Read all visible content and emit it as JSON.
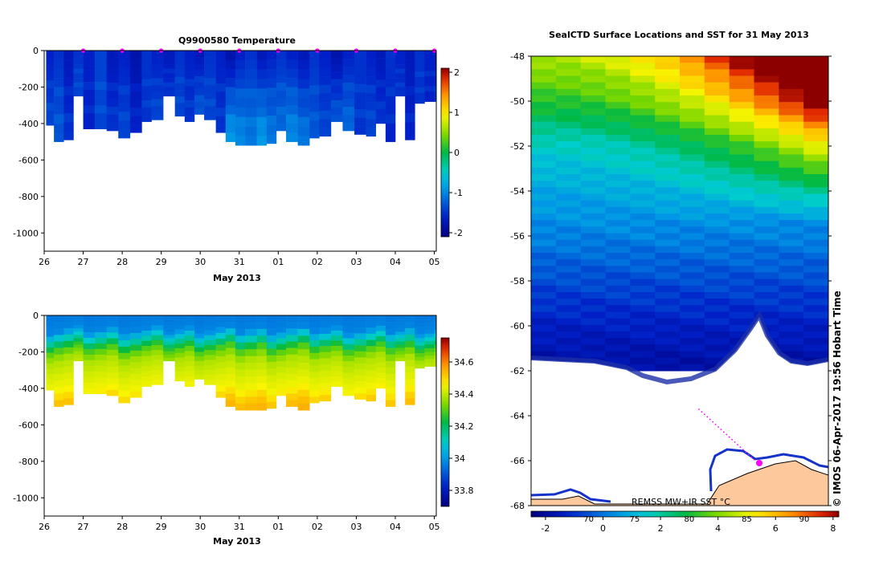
{
  "chart_data": [
    {
      "id": "temperature-section",
      "type": "heatmap",
      "title": "Q9900580  Temperature",
      "xlabel": "May 2013",
      "ylabel": "",
      "x_ticks": [
        "26",
        "27",
        "28",
        "29",
        "30",
        "31",
        "01",
        "02",
        "03",
        "04",
        "05"
      ],
      "x_range_days": [
        26.0,
        36.05
      ],
      "y_ticks": [
        0,
        -200,
        -400,
        -600,
        -800,
        -1000
      ],
      "ylim": [
        -1100,
        0
      ],
      "profile_markers_days": [
        27.0,
        28.0,
        29.0,
        30.0,
        31.0,
        32.0,
        33.0,
        34.0,
        35.0,
        36.0
      ],
      "colorbar": {
        "ticks": [
          2,
          1,
          0,
          -1,
          -2
        ],
        "range": [
          -2.1,
          2.1
        ]
      },
      "profiles": {
        "time_days": [
          26.05,
          26.25,
          26.5,
          26.75,
          27.0,
          27.3,
          27.6,
          27.9,
          28.2,
          28.5,
          28.75,
          29.05,
          29.35,
          29.6,
          29.85,
          30.1,
          30.4,
          30.65,
          30.9,
          31.15,
          31.45,
          31.7,
          31.95,
          32.2,
          32.5,
          32.8,
          33.05,
          33.35,
          33.65,
          33.95,
          34.25,
          34.5,
          34.75,
          35.0,
          35.25,
          35.5,
          35.75,
          36.0
        ],
        "max_depth_m": [
          410,
          500,
          490,
          250,
          430,
          430,
          440,
          480,
          450,
          390,
          380,
          250,
          360,
          390,
          350,
          380,
          450,
          500,
          520,
          520,
          520,
          510,
          440,
          500,
          520,
          480,
          470,
          390,
          440,
          460,
          470,
          400,
          500,
          250,
          490,
          290,
          280,
          280
        ]
      },
      "values_surface_c": [
        -1.6,
        -1.5,
        -1.7,
        -1.5,
        -1.6,
        -1.4,
        -1.7,
        -1.6,
        -1.8,
        -1.5,
        -1.6,
        -1.7,
        -1.5,
        -1.6,
        -1.7,
        -1.5,
        -1.6,
        -1.8,
        -1.6,
        -1.5,
        -1.7,
        -1.6,
        -1.5,
        -1.6,
        -1.7,
        -1.5,
        -1.6,
        -1.8,
        -1.6,
        -1.5,
        -1.6,
        -1.7,
        -1.5,
        -1.6,
        -1.7,
        -1.5,
        -1.6,
        -1.7
      ],
      "values_deep_c": [
        -1.4,
        -1.3,
        -1.5,
        -1.4,
        -1.6,
        -1.4,
        -1.5,
        -1.4,
        -1.6,
        -1.5,
        -1.4,
        -1.5,
        -1.4,
        -1.5,
        -1.3,
        -1.4,
        -1.5,
        -0.9,
        -1.0,
        -1.1,
        -0.9,
        -1.1,
        -1.2,
        -1.0,
        -1.1,
        -1.3,
        -1.4,
        -1.3,
        -1.2,
        -1.5,
        -1.4,
        -1.5,
        -1.6,
        -1.5,
        -1.6,
        -1.5,
        -1.6,
        -1.5
      ]
    },
    {
      "id": "salinity-section",
      "type": "heatmap",
      "title": "",
      "xlabel": "May 2013",
      "ylabel": "",
      "x_ticks": [
        "26",
        "27",
        "28",
        "29",
        "30",
        "31",
        "01",
        "02",
        "03",
        "04",
        "05"
      ],
      "x_range_days": [
        26.0,
        36.05
      ],
      "y_ticks": [
        0,
        -200,
        -400,
        -600,
        -800,
        -1000
      ],
      "ylim": [
        -1100,
        0
      ],
      "colorbar": {
        "ticks": [
          34.6,
          34.4,
          34.2,
          34,
          33.8
        ],
        "range": [
          33.7,
          34.75
        ]
      },
      "salinity_profile_psu": [
        {
          "depth_m": 0,
          "value": 33.95
        },
        {
          "depth_m": 80,
          "value": 33.97
        },
        {
          "depth_m": 130,
          "value": 34.12
        },
        {
          "depth_m": 180,
          "value": 34.28
        },
        {
          "depth_m": 240,
          "value": 34.38
        },
        {
          "depth_m": 320,
          "value": 34.42
        },
        {
          "depth_m": 400,
          "value": 34.45
        },
        {
          "depth_m": 470,
          "value": 34.52
        },
        {
          "depth_m": 530,
          "value": 34.55
        }
      ]
    },
    {
      "id": "sst-map",
      "type": "heatmap",
      "title": "SealCTD Surface Locations and SST for 31 May 2013",
      "y_ticks": [
        -48,
        -50,
        -52,
        -54,
        -56,
        -58,
        -60,
        -62,
        -64,
        -66,
        -68
      ],
      "ylim": [
        -68,
        -48
      ],
      "lon_range": [
        0,
        1
      ],
      "annotation_product": "REMSS MW+IR SST °C",
      "timestamp": "© IMOS 06-Apr-2017 19:56 Hobart Time",
      "colorbar_c": [
        -2,
        0,
        2,
        4,
        6,
        8
      ],
      "colorbar_f": [
        "70",
        "75",
        "80",
        "85",
        "90"
      ],
      "colorbar_c_range": [
        -2.5,
        8.2
      ],
      "colorbar_f_positions_c": [
        -0.5,
        1.1,
        3.0,
        5.0,
        7.0
      ],
      "sst_gradient_c": [
        {
          "lat": -48,
          "value": 4.5
        },
        {
          "lat": -50,
          "value": 3.2
        },
        {
          "lat": -52,
          "value": 1.6
        },
        {
          "lat": -54,
          "value": 0.8
        },
        {
          "lat": -56,
          "value": 0.2
        },
        {
          "lat": -58,
          "value": -0.6
        },
        {
          "lat": -60,
          "value": -1.3
        },
        {
          "lat": -61.5,
          "value": -1.8
        }
      ]
    }
  ]
}
